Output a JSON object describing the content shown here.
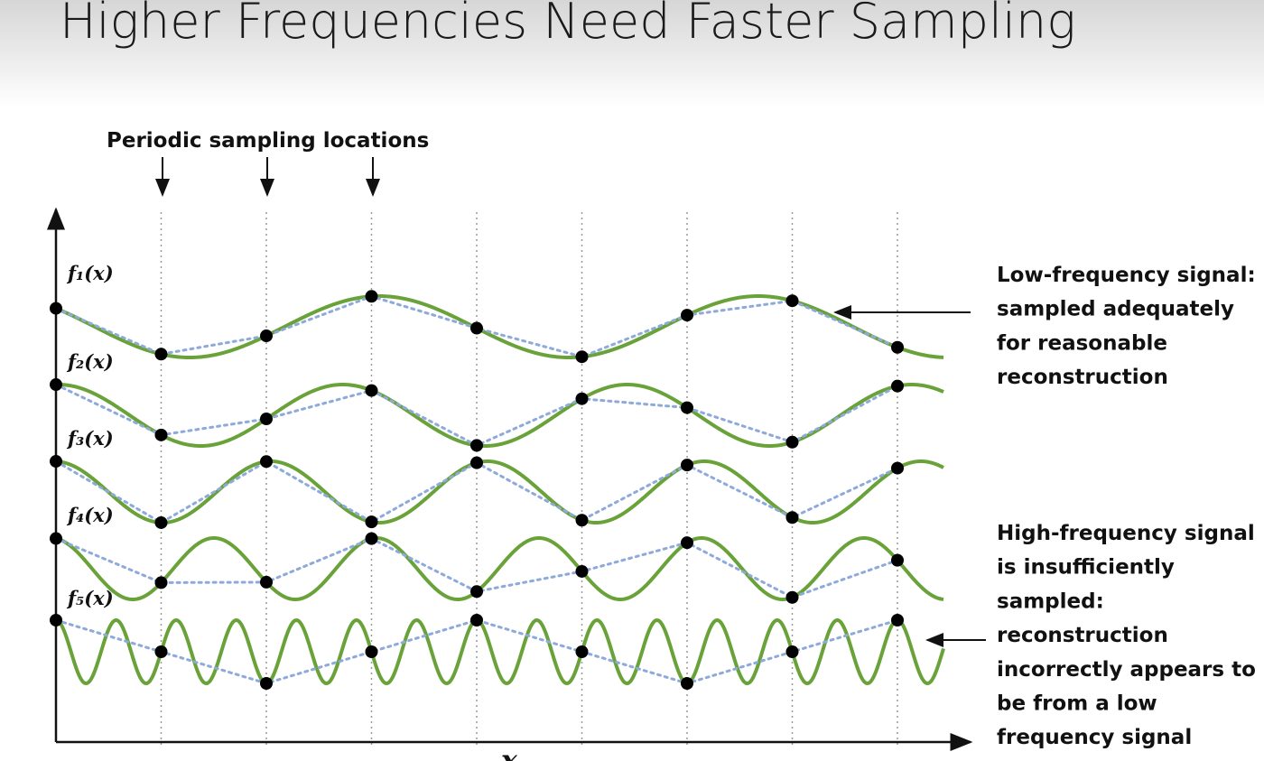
{
  "header": {
    "title": "Higher Frequencies Need Faster Sampling"
  },
  "diagram": {
    "sampling_label": "Periodic sampling locations",
    "functions": [
      {
        "label": "f₁(x)"
      },
      {
        "label": "f₂(x)"
      },
      {
        "label": "f₃(x)"
      },
      {
        "label": "f₄(x)"
      },
      {
        "label": "f₅(x)"
      }
    ],
    "x_label": "x",
    "annotations": [
      {
        "lines": [
          "Low-frequency signal:",
          "sampled adequately",
          "for reasonable",
          "reconstruction"
        ]
      },
      {
        "lines": [
          "High-frequency signal",
          "is insufficiently",
          "sampled:",
          "reconstruction",
          "incorrectly appears to",
          "be from a low",
          "frequency signal"
        ]
      }
    ]
  }
}
